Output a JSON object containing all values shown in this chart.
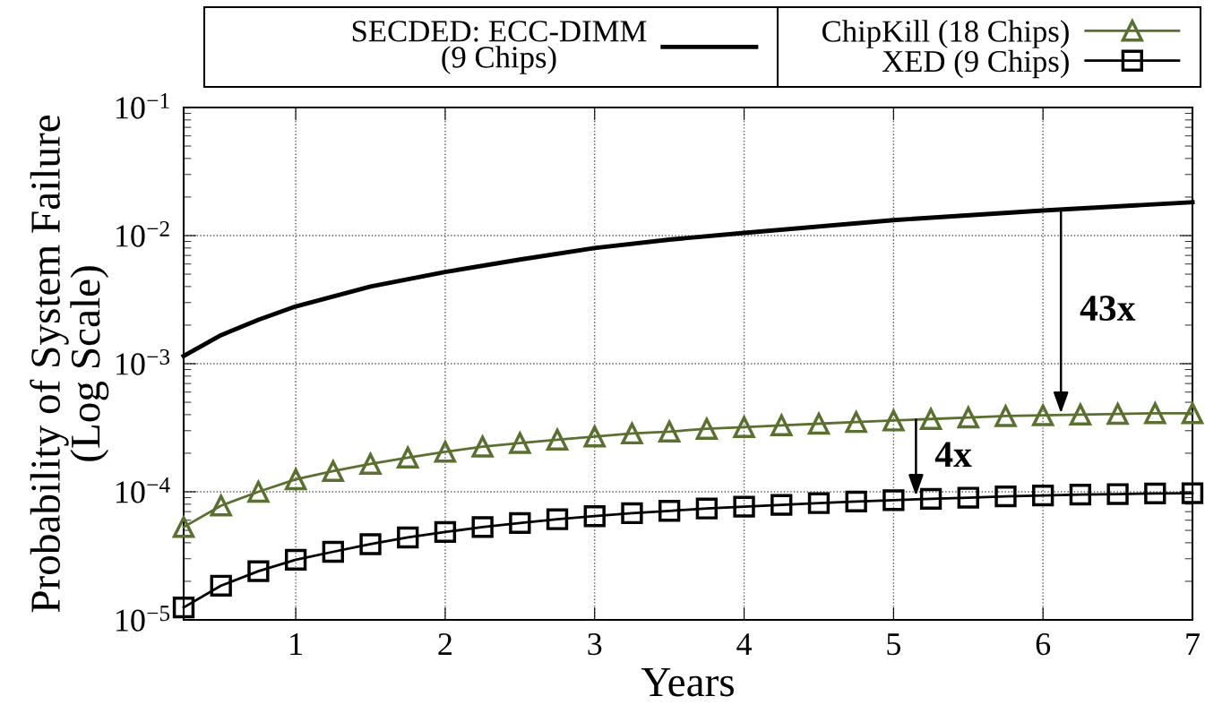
{
  "chart_data": {
    "type": "line",
    "xlabel": "Years",
    "ylabel": "Probability of System Failure\n(Log Scale)",
    "log": "y",
    "grid": true,
    "legend": "top",
    "xlim": [
      0.25,
      7
    ],
    "xticks": [
      1,
      2,
      3,
      4,
      5,
      6,
      7
    ],
    "ylim": [
      1e-05,
      0.1
    ],
    "yticks": [
      {
        "value": 1e-05,
        "label": "10$^{−5}$"
      },
      {
        "value": 0.0001,
        "label": "10$^{−4}$"
      },
      {
        "value": 0.001,
        "label": "10$^{−3}$"
      },
      {
        "value": 0.01,
        "label": "10$^{−2}$"
      },
      {
        "value": 0.1,
        "label": "10$^{−1}$"
      }
    ],
    "series": [
      {
        "name": "SECDED: ECC-DIMM\n(9 Chips)",
        "color": "#000000",
        "marker": "none",
        "x": [
          0.25,
          0.5,
          0.75,
          1,
          1.5,
          2,
          2.5,
          3,
          3.5,
          4,
          5,
          6,
          7
        ],
        "values": [
          0.00115,
          0.00167,
          0.0022,
          0.0028,
          0.004,
          0.0052,
          0.0065,
          0.008,
          0.0093,
          0.0105,
          0.0132,
          0.0157,
          0.0182
        ]
      },
      {
        "name": "ChipKill (18 Chips)",
        "color": "#5a7030",
        "marker": "triangle",
        "x": [
          0.25,
          0.5,
          0.75,
          1,
          1.25,
          1.5,
          1.75,
          2,
          2.25,
          2.5,
          2.75,
          3,
          3.25,
          3.5,
          3.75,
          4,
          4.25,
          4.5,
          4.75,
          5,
          5.25,
          5.5,
          5.75,
          6,
          6.25,
          6.5,
          6.75,
          7
        ],
        "values": [
          5.3e-05,
          7.8e-05,
          0.0001,
          0.000125,
          0.000145,
          0.000165,
          0.000185,
          0.000205,
          0.000225,
          0.00024,
          0.000255,
          0.00027,
          0.000285,
          0.000295,
          0.00031,
          0.00032,
          0.00033,
          0.00034,
          0.00035,
          0.00036,
          0.00037,
          0.00038,
          0.00039,
          0.000395,
          0.0004,
          0.000405,
          0.00041,
          0.00041
        ]
      },
      {
        "name": "XED (9 Chips)",
        "color": "#000000",
        "marker": "square",
        "x": [
          0.25,
          0.5,
          0.75,
          1,
          1.25,
          1.5,
          1.75,
          2,
          2.25,
          2.5,
          2.75,
          3,
          3.25,
          3.5,
          3.75,
          4,
          4.25,
          4.5,
          4.75,
          5,
          5.25,
          5.5,
          5.75,
          6,
          6.25,
          6.5,
          6.75,
          7
        ],
        "values": [
          1.25e-05,
          1.85e-05,
          2.4e-05,
          2.95e-05,
          3.4e-05,
          3.9e-05,
          4.4e-05,
          4.85e-05,
          5.3e-05,
          5.7e-05,
          6.1e-05,
          6.45e-05,
          6.8e-05,
          7.1e-05,
          7.4e-05,
          7.65e-05,
          7.9e-05,
          8.15e-05,
          8.4e-05,
          8.6e-05,
          8.8e-05,
          9e-05,
          9.2e-05,
          9.35e-05,
          9.5e-05,
          9.6e-05,
          9.7e-05,
          9.75e-05
        ]
      }
    ],
    "annotations": [
      {
        "text": "43x",
        "x": 6.12,
        "y": 0.00041
      },
      {
        "text": "4x",
        "x": 5.15,
        "y": 9.3e-05
      }
    ]
  }
}
